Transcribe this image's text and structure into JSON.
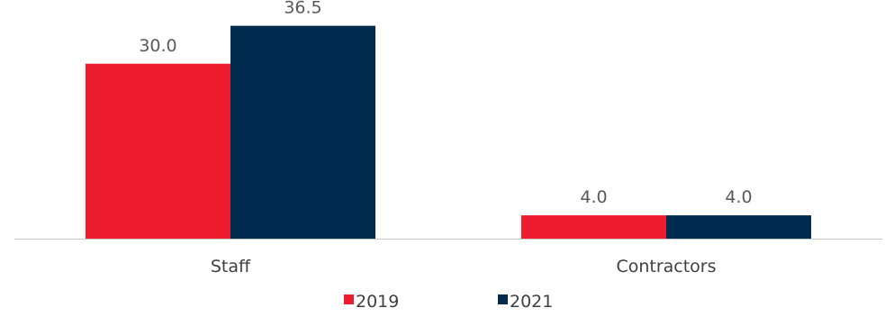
{
  "chart_data": {
    "type": "bar",
    "title": "",
    "xlabel": "",
    "ylabel": "",
    "categories": [
      "Staff",
      "Contractors"
    ],
    "series": [
      {
        "name": "2019",
        "values": [
          30.0,
          4.0
        ],
        "labels": [
          "30.0",
          "4.0"
        ],
        "color": "#ed1c2e"
      },
      {
        "name": "2021",
        "values": [
          36.5,
          4.0
        ],
        "labels": [
          "36.5",
          "4.0"
        ],
        "color": "#002a4e"
      }
    ],
    "ylim": [
      0,
      40
    ],
    "grid": false,
    "legend_position": "bottom",
    "axis_color": "#c9c9c9"
  }
}
